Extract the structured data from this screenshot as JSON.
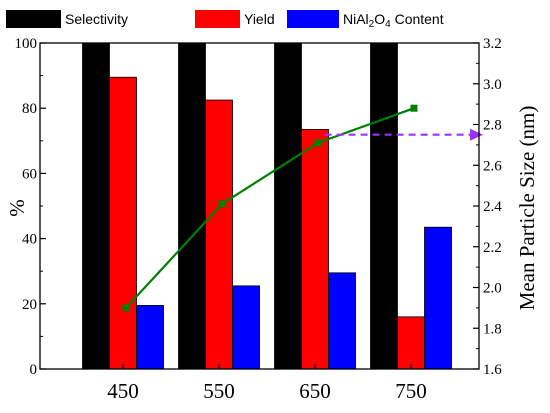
{
  "chart_data": {
    "type": "bar",
    "categories": [
      "450",
      "550",
      "650",
      "750"
    ],
    "series": [
      {
        "name": "Selectivity",
        "axis": "left",
        "color": "#000000",
        "values": [
          100,
          100,
          100,
          100
        ]
      },
      {
        "name": "Yield",
        "axis": "left",
        "color": "#ff0000",
        "values": [
          89.5,
          82.5,
          73.5,
          16
        ]
      },
      {
        "name": "NiAl2O4 Content",
        "name_parts": [
          "NiAl",
          "2",
          "O",
          "4",
          " Content"
        ],
        "axis": "left",
        "color": "#0000ff",
        "values": [
          19.5,
          25.5,
          29.5,
          43.5
        ]
      }
    ],
    "line_series": {
      "axis": "right",
      "color": "#008000",
      "values": [
        1.9,
        2.41,
        2.71,
        2.88
      ]
    },
    "arrow": {
      "from_x_category": 2.1,
      "to_x_category": 3.75,
      "y_right": 2.75,
      "color": "#9b30ff",
      "style": "dashed"
    },
    "ylabel_left": "%",
    "ylabel_right": "Mean Particle Size (nm)",
    "xlabel": "",
    "ylim_left": [
      0,
      100
    ],
    "ylim_right": [
      1.6,
      3.2
    ],
    "yticks_left": [
      "0",
      "20",
      "40",
      "60",
      "80",
      "100"
    ],
    "yticks_right": [
      "1.6",
      "1.8",
      "2.0",
      "2.2",
      "2.4",
      "2.6",
      "2.8",
      "3.0",
      "3.2"
    ],
    "legend_position": "top"
  }
}
